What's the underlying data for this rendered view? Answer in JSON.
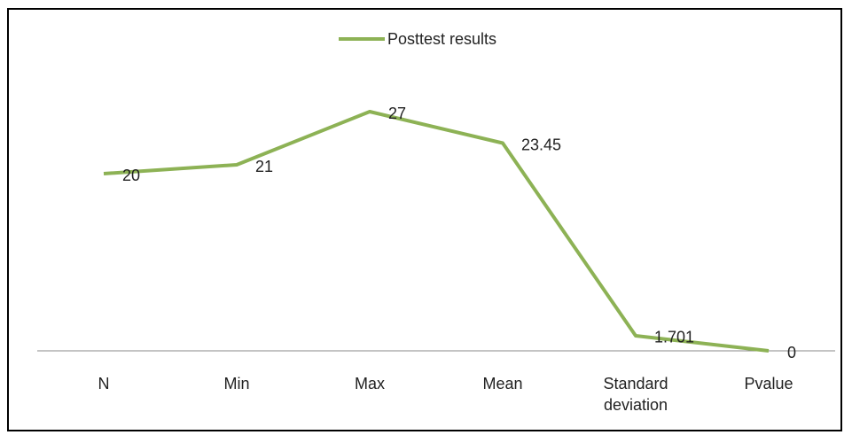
{
  "chart_data": {
    "type": "line",
    "categories": [
      "N",
      "Min",
      "Max",
      "Mean",
      "Standard deviation",
      "Pvalue"
    ],
    "series": [
      {
        "name": "Posttest results",
        "color": "#8db255",
        "values": [
          20,
          21,
          27,
          23.45,
          1.701,
          0
        ]
      }
    ],
    "legend": "top"
  }
}
